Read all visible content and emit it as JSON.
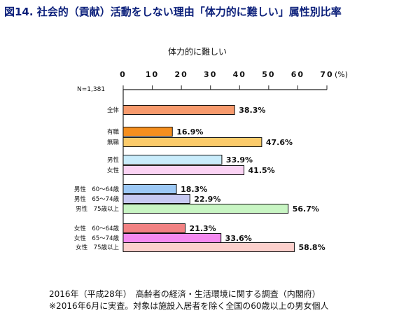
{
  "figure_title": "図14. 社会的（貢献）活動をしない理由「体力的に難しい」属性別比率",
  "chart_data": {
    "type": "bar",
    "orientation": "horizontal",
    "subtitle": "体力的に難しい",
    "n_label": "N=1,381",
    "unit_label": "(%)",
    "xlim": [
      0,
      70
    ],
    "ticks": [
      "0",
      "10",
      "20",
      "30",
      "40",
      "50",
      "60",
      "70"
    ],
    "bars": [
      {
        "label": "全体",
        "value": 38.3,
        "value_label": "38.3%",
        "color": "#f79a6d"
      },
      {
        "label": "有職",
        "value": 16.9,
        "value_label": "16.9%",
        "color": "#f58f1f"
      },
      {
        "label": "無職",
        "value": 47.6,
        "value_label": "47.6%",
        "color": "#fccb6a"
      },
      {
        "label": "男性",
        "value": 33.9,
        "value_label": "33.9%",
        "color": "#c9ecfb"
      },
      {
        "label": "女性",
        "value": 41.5,
        "value_label": "41.5%",
        "color": "#fbd3f4"
      },
      {
        "label": "男性　60～64歳",
        "value": 18.3,
        "value_label": "18.3%",
        "color": "#9cc8f5"
      },
      {
        "label": "男性　65～74歳",
        "value": 22.9,
        "value_label": "22.9%",
        "color": "#c7c9f2"
      },
      {
        "label": "男性　75歳以上",
        "value": 56.7,
        "value_label": "56.7%",
        "color": "#c8f5c3"
      },
      {
        "label": "女性　60～64歳",
        "value": 21.3,
        "value_label": "21.3%",
        "color": "#f28283"
      },
      {
        "label": "女性　65～74歳",
        "value": 33.6,
        "value_label": "33.6%",
        "color": "#f58af0"
      },
      {
        "label": "女性　75歳以上",
        "value": 58.8,
        "value_label": "58.8%",
        "color": "#fcd0cc"
      }
    ]
  },
  "footer": {
    "line1": "2016年（平成28年）　高齢者の経済・生活環境に関する調査（内閣府）",
    "line2": "※2016年6月に実査。対象は施設入居者を除く全国の60歳以上の男女個人"
  }
}
